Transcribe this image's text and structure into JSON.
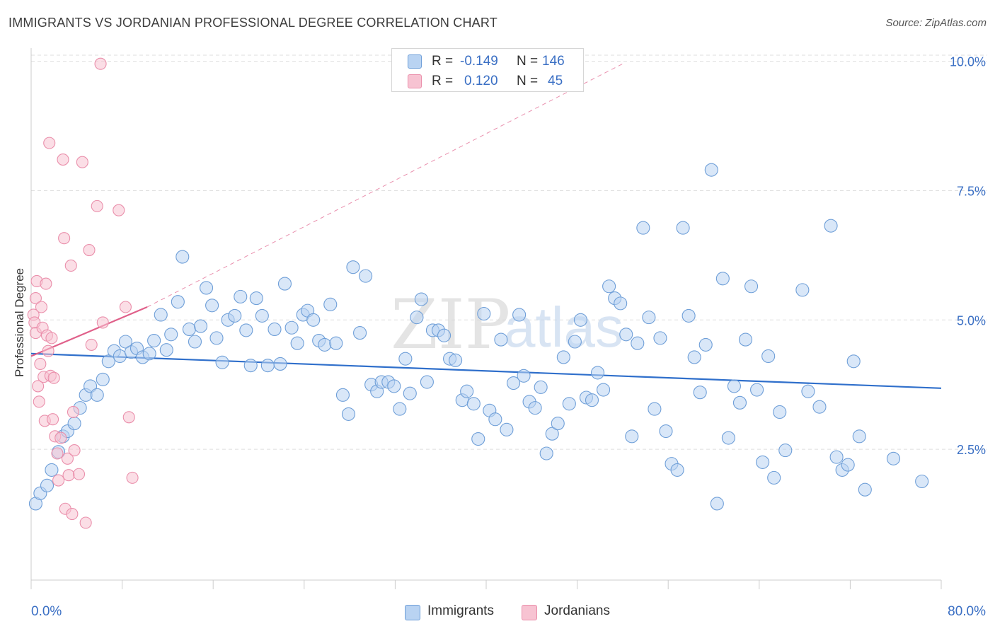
{
  "title": "IMMIGRANTS VS JORDANIAN PROFESSIONAL DEGREE CORRELATION CHART",
  "source": "Source: ZipAtlas.com",
  "watermark": {
    "zip": "ZIP",
    "atlas": "atlas"
  },
  "legend": {
    "rows": [
      {
        "r_label": "R =",
        "r_value": "-0.149",
        "n_label": "N =",
        "n_value": "146"
      },
      {
        "r_label": "R =",
        "r_value": "0.120",
        "n_label": "N =",
        "n_value": "45"
      }
    ]
  },
  "bottom_legend": {
    "series_a": "Immigrants",
    "series_b": "Jordanians"
  },
  "colors": {
    "blue_fill": "#b9d3f2",
    "blue_stroke": "#6f9fd8",
    "blue_line": "#2f6fcb",
    "pink_fill": "#f7c3d2",
    "pink_stroke": "#ea8fab",
    "pink_line": "#e0608a",
    "grid": "#dddddd",
    "tick_label": "#3a6fc4"
  },
  "chart_data": {
    "type": "scatter",
    "title": "IMMIGRANTS VS JORDANIAN PROFESSIONAL DEGREE CORRELATION CHART",
    "xlabel": "",
    "ylabel": "Professional Degree",
    "xlim": [
      0,
      80
    ],
    "ylim": [
      0,
      10.5
    ],
    "x_tick_labels": [
      "0.0%",
      "80.0%"
    ],
    "y_ticks": [
      2.5,
      5.0,
      7.5,
      10.0
    ],
    "y_tick_labels": [
      "2.5%",
      "5.0%",
      "7.5%",
      "10.0%"
    ],
    "grid": true,
    "legend_position": "top-center",
    "series": [
      {
        "name": "Immigrants",
        "r": -0.149,
        "n": 146,
        "trend": {
          "x": [
            0,
            80
          ],
          "y": [
            4.35,
            3.68
          ]
        },
        "points": [
          [
            0.4,
            1.45
          ],
          [
            0.8,
            1.65
          ],
          [
            1.4,
            1.8
          ],
          [
            1.8,
            2.1
          ],
          [
            2.4,
            2.45
          ],
          [
            2.8,
            2.75
          ],
          [
            3.2,
            2.85
          ],
          [
            3.8,
            3.0
          ],
          [
            4.3,
            3.3
          ],
          [
            4.8,
            3.55
          ],
          [
            5.2,
            3.72
          ],
          [
            5.8,
            3.55
          ],
          [
            6.3,
            3.85
          ],
          [
            6.8,
            4.2
          ],
          [
            7.3,
            4.4
          ],
          [
            7.8,
            4.3
          ],
          [
            8.3,
            4.58
          ],
          [
            8.8,
            4.38
          ],
          [
            9.3,
            4.45
          ],
          [
            9.8,
            4.28
          ],
          [
            10.4,
            4.35
          ],
          [
            10.8,
            4.6
          ],
          [
            11.4,
            5.1
          ],
          [
            11.9,
            4.42
          ],
          [
            12.3,
            4.72
          ],
          [
            12.9,
            5.35
          ],
          [
            13.3,
            6.22
          ],
          [
            13.9,
            4.82
          ],
          [
            14.4,
            4.58
          ],
          [
            14.9,
            4.88
          ],
          [
            15.4,
            5.62
          ],
          [
            15.9,
            5.28
          ],
          [
            16.3,
            4.65
          ],
          [
            16.8,
            4.18
          ],
          [
            17.3,
            5.0
          ],
          [
            17.9,
            5.08
          ],
          [
            18.4,
            5.45
          ],
          [
            18.9,
            4.8
          ],
          [
            19.3,
            4.12
          ],
          [
            19.8,
            5.42
          ],
          [
            20.3,
            5.08
          ],
          [
            20.8,
            4.12
          ],
          [
            21.4,
            4.82
          ],
          [
            21.9,
            4.15
          ],
          [
            22.3,
            5.7
          ],
          [
            22.9,
            4.85
          ],
          [
            23.4,
            4.55
          ],
          [
            23.9,
            5.1
          ],
          [
            24.3,
            5.18
          ],
          [
            24.8,
            5.0
          ],
          [
            25.3,
            4.6
          ],
          [
            25.8,
            4.52
          ],
          [
            26.3,
            5.3
          ],
          [
            26.8,
            4.55
          ],
          [
            27.4,
            3.55
          ],
          [
            27.9,
            3.18
          ],
          [
            28.3,
            6.02
          ],
          [
            28.9,
            4.75
          ],
          [
            29.4,
            5.85
          ],
          [
            29.9,
            3.75
          ],
          [
            30.4,
            3.62
          ],
          [
            30.8,
            3.8
          ],
          [
            31.4,
            3.8
          ],
          [
            31.9,
            3.72
          ],
          [
            32.4,
            3.28
          ],
          [
            32.9,
            4.25
          ],
          [
            33.3,
            3.58
          ],
          [
            33.9,
            5.05
          ],
          [
            34.3,
            5.4
          ],
          [
            34.8,
            3.8
          ],
          [
            35.3,
            4.8
          ],
          [
            35.8,
            4.8
          ],
          [
            36.3,
            4.7
          ],
          [
            36.8,
            4.25
          ],
          [
            37.3,
            4.22
          ],
          [
            37.9,
            3.45
          ],
          [
            38.3,
            3.62
          ],
          [
            38.9,
            3.38
          ],
          [
            39.3,
            2.7
          ],
          [
            39.8,
            5.12
          ],
          [
            40.3,
            3.25
          ],
          [
            40.8,
            3.08
          ],
          [
            41.3,
            4.62
          ],
          [
            41.8,
            2.88
          ],
          [
            42.4,
            3.78
          ],
          [
            42.9,
            5.1
          ],
          [
            43.3,
            3.92
          ],
          [
            43.8,
            3.42
          ],
          [
            44.3,
            3.3
          ],
          [
            44.8,
            3.7
          ],
          [
            45.3,
            2.42
          ],
          [
            45.8,
            2.8
          ],
          [
            46.3,
            3.0
          ],
          [
            46.8,
            4.28
          ],
          [
            47.3,
            3.38
          ],
          [
            47.8,
            4.58
          ],
          [
            48.3,
            5.0
          ],
          [
            48.8,
            3.5
          ],
          [
            49.3,
            3.45
          ],
          [
            49.8,
            3.98
          ],
          [
            50.3,
            3.65
          ],
          [
            50.8,
            5.65
          ],
          [
            51.3,
            5.42
          ],
          [
            51.8,
            5.32
          ],
          [
            52.3,
            4.72
          ],
          [
            52.8,
            2.75
          ],
          [
            53.3,
            4.55
          ],
          [
            53.8,
            6.78
          ],
          [
            54.3,
            5.05
          ],
          [
            54.8,
            3.28
          ],
          [
            55.3,
            4.65
          ],
          [
            55.8,
            2.85
          ],
          [
            56.3,
            2.22
          ],
          [
            56.8,
            2.1
          ],
          [
            57.3,
            6.78
          ],
          [
            57.8,
            5.08
          ],
          [
            58.3,
            4.28
          ],
          [
            58.8,
            3.6
          ],
          [
            59.3,
            4.52
          ],
          [
            59.8,
            7.9
          ],
          [
            60.3,
            1.45
          ],
          [
            60.8,
            5.8
          ],
          [
            61.3,
            2.72
          ],
          [
            61.8,
            3.72
          ],
          [
            62.3,
            3.4
          ],
          [
            62.8,
            4.62
          ],
          [
            63.3,
            5.65
          ],
          [
            63.8,
            3.65
          ],
          [
            64.3,
            2.25
          ],
          [
            64.8,
            4.3
          ],
          [
            65.3,
            1.95
          ],
          [
            65.8,
            3.22
          ],
          [
            66.3,
            2.48
          ],
          [
            67.8,
            5.58
          ],
          [
            68.3,
            3.62
          ],
          [
            69.3,
            3.32
          ],
          [
            70.3,
            6.82
          ],
          [
            70.8,
            2.35
          ],
          [
            71.3,
            2.1
          ],
          [
            71.8,
            2.2
          ],
          [
            72.3,
            4.2
          ],
          [
            72.8,
            2.75
          ],
          [
            73.3,
            1.72
          ],
          [
            75.8,
            2.32
          ],
          [
            78.3,
            1.88
          ]
        ]
      },
      {
        "name": "Jordanians",
        "r": 0.12,
        "n": 45,
        "trend": {
          "x": [
            0,
            10.2
          ],
          "y": [
            4.3,
            5.25
          ]
        },
        "trend_extended": {
          "x": [
            10.2,
            52
          ],
          "y": [
            5.25,
            9.95
          ]
        },
        "points": [
          [
            0.2,
            5.1
          ],
          [
            0.3,
            4.95
          ],
          [
            0.4,
            5.42
          ],
          [
            0.4,
            4.75
          ],
          [
            0.5,
            5.75
          ],
          [
            0.6,
            3.72
          ],
          [
            0.7,
            3.42
          ],
          [
            0.8,
            4.15
          ],
          [
            0.9,
            5.25
          ],
          [
            1.0,
            4.85
          ],
          [
            1.1,
            3.9
          ],
          [
            1.2,
            3.05
          ],
          [
            1.3,
            5.7
          ],
          [
            1.4,
            4.7
          ],
          [
            1.5,
            4.4
          ],
          [
            1.6,
            8.42
          ],
          [
            1.7,
            3.92
          ],
          [
            1.8,
            4.65
          ],
          [
            1.9,
            3.08
          ],
          [
            2.0,
            3.88
          ],
          [
            2.1,
            2.75
          ],
          [
            2.3,
            2.42
          ],
          [
            2.4,
            1.9
          ],
          [
            2.6,
            2.72
          ],
          [
            2.8,
            8.1
          ],
          [
            2.9,
            6.58
          ],
          [
            3.0,
            1.35
          ],
          [
            3.2,
            2.32
          ],
          [
            3.3,
            2.0
          ],
          [
            3.5,
            6.05
          ],
          [
            3.6,
            1.25
          ],
          [
            3.7,
            3.22
          ],
          [
            3.8,
            2.48
          ],
          [
            4.2,
            2.02
          ],
          [
            4.5,
            8.05
          ],
          [
            4.8,
            1.08
          ],
          [
            5.1,
            6.35
          ],
          [
            5.3,
            4.52
          ],
          [
            5.8,
            7.2
          ],
          [
            6.1,
            9.95
          ],
          [
            6.3,
            4.95
          ],
          [
            7.7,
            7.12
          ],
          [
            8.3,
            5.25
          ],
          [
            8.6,
            3.12
          ],
          [
            8.9,
            1.95
          ]
        ]
      }
    ]
  }
}
